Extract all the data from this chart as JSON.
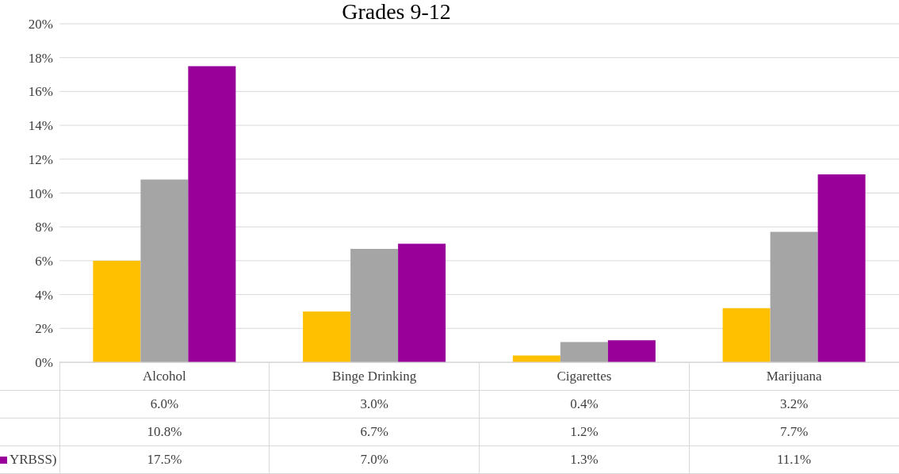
{
  "chart_data": {
    "type": "bar",
    "title": "Grades 9-12",
    "categories": [
      "Alcohol",
      "Binge Drinking",
      "Cigarettes",
      "Marijuana"
    ],
    "series": [
      {
        "color": "#ffc000",
        "values": [
          6.0,
          3.0,
          0.4,
          3.2
        ],
        "value_labels": [
          "6.0%",
          "3.0%",
          "0.4%",
          "3.2%"
        ]
      },
      {
        "color": "#a5a5a5",
        "values": [
          10.8,
          6.7,
          1.2,
          7.7
        ],
        "value_labels": [
          "10.8%",
          "6.7%",
          "1.2%",
          "7.7%"
        ]
      },
      {
        "name": "YRBSS)",
        "color": "#990099",
        "values": [
          17.5,
          7.0,
          1.3,
          11.1
        ],
        "value_labels": [
          "17.5%",
          "7.0%",
          "1.3%",
          "11.1%"
        ]
      }
    ],
    "ylim": [
      0,
      20
    ],
    "yticks": [
      {
        "value": 0,
        "label": "0%"
      },
      {
        "value": 2,
        "label": "2%"
      },
      {
        "value": 4,
        "label": "4%"
      },
      {
        "value": 6,
        "label": "6%"
      },
      {
        "value": 8,
        "label": "8%"
      },
      {
        "value": 10,
        "label": "10%"
      },
      {
        "value": 12,
        "label": "12%"
      },
      {
        "value": 14,
        "label": "14%"
      },
      {
        "value": 16,
        "label": "16%"
      },
      {
        "value": 18,
        "label": "18%"
      },
      {
        "value": 20,
        "label": "20%"
      }
    ],
    "grid": "y",
    "legend": "bottom left"
  }
}
